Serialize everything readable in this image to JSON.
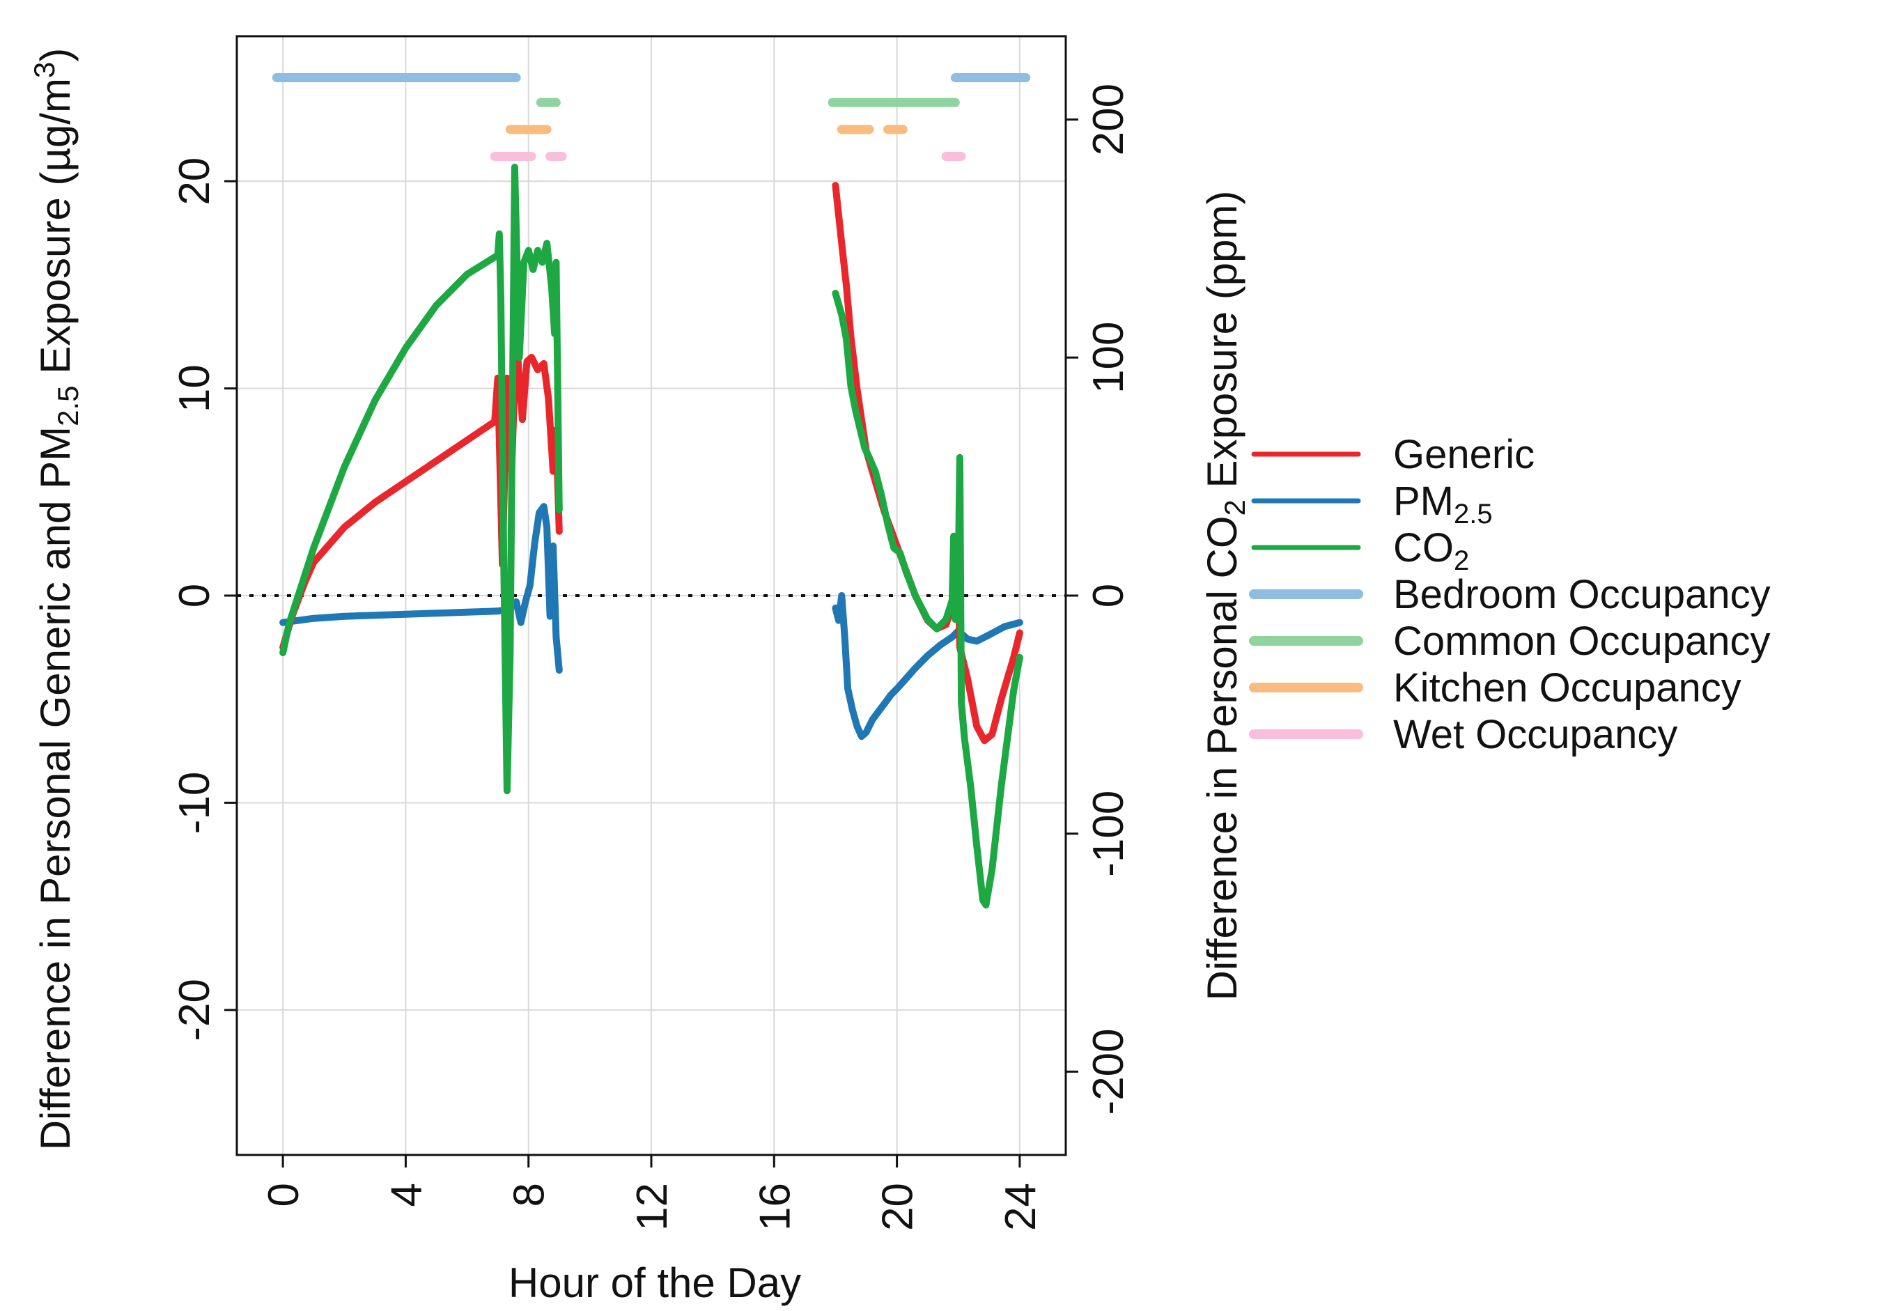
{
  "chart_data": {
    "type": "line",
    "xlabel": "Hour of the Day",
    "ylabel_left": {
      "prefix": "Difference in Personal Generic and PM",
      "sub": "2.5",
      "mid": " Exposure (µg/m",
      "sup": "3",
      "suffix": ")"
    },
    "ylabel_right": {
      "prefix": "Difference in Personal CO",
      "sub": "2",
      "suffix": " Exposure (ppm)"
    },
    "xlim": [
      -1.5,
      25.5
    ],
    "ylim_left": [
      -27,
      27
    ],
    "ylim_right": [
      -235,
      235
    ],
    "x_ticks": [
      0,
      4,
      8,
      12,
      16,
      20,
      24
    ],
    "x_tick_labels": [
      "0",
      "4",
      "8",
      "12",
      "16",
      "20",
      "24"
    ],
    "left_ticks": [
      -20,
      -10,
      0,
      10,
      20
    ],
    "left_tick_labels": [
      "-20",
      "-10",
      "0",
      "10",
      "20"
    ],
    "right_ticks": [
      -200,
      -100,
      0,
      100,
      200
    ],
    "right_tick_labels": [
      "-200",
      "-100",
      "0",
      "100",
      "200"
    ],
    "grid": true,
    "reference_line": {
      "y": 0,
      "style": "dotted"
    },
    "legend": {
      "placement": "right",
      "entries": [
        {
          "key": "generic",
          "label": "Generic",
          "color": "#e8262b"
        },
        {
          "key": "pm25",
          "label": "PM",
          "sub": "2.5",
          "color": "#1f77b4"
        },
        {
          "key": "co2",
          "label": "CO",
          "sub": "2",
          "color": "#1ea843"
        },
        {
          "key": "bedroom",
          "label": "Bedroom Occupancy",
          "color": "#8fbde0"
        },
        {
          "key": "common",
          "label": "Common Occupancy",
          "color": "#8fd39f"
        },
        {
          "key": "kitchen",
          "label": "Kitchen Occupancy",
          "color": "#f9bc7e"
        },
        {
          "key": "wet",
          "label": "Wet Occupancy",
          "color": "#f9bedc"
        }
      ]
    },
    "series": [
      {
        "name": "Generic",
        "axis": "left",
        "color": "#e8262b",
        "segments": [
          [
            [
              0,
              -2.5
            ],
            [
              0.3,
              -1
            ],
            [
              0.7,
              0.6
            ],
            [
              1,
              1.6
            ],
            [
              2,
              3.3
            ],
            [
              3,
              4.5
            ],
            [
              4,
              5.5
            ],
            [
              5,
              6.5
            ],
            [
              6,
              7.5
            ],
            [
              6.9,
              8.4
            ],
            [
              7.0,
              10.5
            ],
            [
              7.15,
              1.5
            ],
            [
              7.3,
              10.5
            ],
            [
              7.45,
              6
            ],
            [
              7.6,
              12.5
            ],
            [
              7.8,
              8.5
            ],
            [
              7.95,
              11.3
            ],
            [
              8.1,
              11.5
            ],
            [
              8.3,
              10.9
            ],
            [
              8.5,
              11.2
            ],
            [
              8.65,
              9.5
            ],
            [
              8.8,
              6
            ],
            [
              8.9,
              8
            ],
            [
              9.0,
              3.1
            ]
          ],
          [
            [
              18.0,
              19.8
            ],
            [
              18.2,
              17
            ],
            [
              18.35,
              15
            ],
            [
              18.5,
              12.5
            ],
            [
              18.7,
              10
            ],
            [
              18.85,
              8.5
            ],
            [
              19.0,
              7
            ],
            [
              19.2,
              6
            ],
            [
              19.4,
              5
            ],
            [
              19.6,
              4
            ],
            [
              19.8,
              3.2
            ],
            [
              20.0,
              2.4
            ],
            [
              20.3,
              1.2
            ],
            [
              20.6,
              0
            ],
            [
              21,
              -1.2
            ],
            [
              21.3,
              -1.6
            ],
            [
              21.6,
              -1.4
            ],
            [
              21.8,
              -0.5
            ],
            [
              22.0,
              1.2
            ],
            [
              22.05,
              -2.5
            ],
            [
              22.3,
              -4
            ],
            [
              22.6,
              -6.3
            ],
            [
              22.85,
              -7
            ],
            [
              23.1,
              -6.7
            ],
            [
              23.4,
              -5
            ],
            [
              23.8,
              -3
            ],
            [
              24.0,
              -1.8
            ]
          ]
        ]
      },
      {
        "name": "PM2.5",
        "axis": "left",
        "color": "#1f77b4",
        "segments": [
          [
            [
              0,
              -1.3
            ],
            [
              1,
              -1.1
            ],
            [
              2,
              -1.0
            ],
            [
              3,
              -0.95
            ],
            [
              4,
              -0.9
            ],
            [
              5,
              -0.85
            ],
            [
              6,
              -0.8
            ],
            [
              7,
              -0.75
            ],
            [
              7.2,
              -0.7
            ],
            [
              7.4,
              -0.6
            ],
            [
              7.6,
              -0.3
            ],
            [
              7.75,
              -1.3
            ],
            [
              7.9,
              -0.3
            ],
            [
              8.05,
              0.5
            ],
            [
              8.2,
              2.5
            ],
            [
              8.35,
              4
            ],
            [
              8.5,
              4.3
            ],
            [
              8.6,
              3.3
            ],
            [
              8.7,
              -1
            ],
            [
              8.8,
              2.4
            ],
            [
              8.9,
              -2
            ],
            [
              9.0,
              -3.6
            ]
          ],
          [
            [
              18.0,
              -0.6
            ],
            [
              18.1,
              -1.2
            ],
            [
              18.2,
              0
            ],
            [
              18.3,
              -2
            ],
            [
              18.4,
              -4.5
            ],
            [
              18.55,
              -5.5
            ],
            [
              18.7,
              -6.3
            ],
            [
              18.85,
              -6.8
            ],
            [
              19.0,
              -6.6
            ],
            [
              19.2,
              -6
            ],
            [
              19.4,
              -5.6
            ],
            [
              19.6,
              -5.2
            ],
            [
              19.8,
              -4.8
            ],
            [
              20.0,
              -4.5
            ],
            [
              20.3,
              -4
            ],
            [
              20.6,
              -3.5
            ],
            [
              21.0,
              -2.9
            ],
            [
              21.4,
              -2.4
            ],
            [
              21.8,
              -2
            ],
            [
              22.0,
              -1.7
            ],
            [
              22.3,
              -2.1
            ],
            [
              22.6,
              -2.2
            ],
            [
              23,
              -1.9
            ],
            [
              23.5,
              -1.5
            ],
            [
              24.0,
              -1.3
            ]
          ]
        ]
      },
      {
        "name": "CO2",
        "axis": "right",
        "color": "#1ea843",
        "segments": [
          [
            [
              0,
              -24
            ],
            [
              0.2,
              -12
            ],
            [
              0.5,
              0
            ],
            [
              1,
              20
            ],
            [
              2,
              54
            ],
            [
              3,
              82
            ],
            [
              4,
              104
            ],
            [
              5,
              122
            ],
            [
              6,
              135
            ],
            [
              7,
              143
            ],
            [
              7.05,
              152
            ],
            [
              7.1,
              125
            ],
            [
              7.2,
              10
            ],
            [
              7.3,
              -82
            ],
            [
              7.4,
              -25
            ],
            [
              7.55,
              180
            ],
            [
              7.7,
              100
            ],
            [
              7.85,
              140
            ],
            [
              8.0,
              145
            ],
            [
              8.15,
              137
            ],
            [
              8.3,
              145
            ],
            [
              8.45,
              140
            ],
            [
              8.6,
              148
            ],
            [
              8.75,
              130
            ],
            [
              8.85,
              110
            ],
            [
              8.9,
              140
            ],
            [
              9.0,
              36
            ]
          ],
          [
            [
              18.0,
              127
            ],
            [
              18.2,
              118
            ],
            [
              18.35,
              108
            ],
            [
              18.5,
              88
            ],
            [
              18.65,
              78
            ],
            [
              18.8,
              70
            ],
            [
              18.95,
              62
            ],
            [
              19.1,
              58
            ],
            [
              19.3,
              52
            ],
            [
              19.5,
              42
            ],
            [
              19.7,
              30
            ],
            [
              19.9,
              20
            ],
            [
              20.1,
              18
            ],
            [
              20.3,
              10
            ],
            [
              20.6,
              0
            ],
            [
              21,
              -10
            ],
            [
              21.3,
              -14
            ],
            [
              21.6,
              -10
            ],
            [
              21.8,
              -2
            ],
            [
              21.85,
              25
            ],
            [
              21.9,
              -10
            ],
            [
              22.0,
              10
            ],
            [
              22.05,
              58
            ],
            [
              22.1,
              -45
            ],
            [
              22.2,
              -60
            ],
            [
              22.4,
              -80
            ],
            [
              22.6,
              -105
            ],
            [
              22.8,
              -128
            ],
            [
              22.9,
              -130
            ],
            [
              23.1,
              -115
            ],
            [
              23.4,
              -80
            ],
            [
              23.8,
              -40
            ],
            [
              24.0,
              -26
            ]
          ]
        ]
      }
    ],
    "occupancy_bands": [
      {
        "name": "Bedroom Occupancy",
        "color": "#8fbde0",
        "level": 25.0,
        "spans": [
          [
            -0.2,
            7.6
          ],
          [
            21.9,
            24.2
          ]
        ]
      },
      {
        "name": "Common Occupancy",
        "color": "#8fd39f",
        "level": 23.8,
        "spans": [
          [
            8.4,
            8.9
          ],
          [
            17.9,
            19.9
          ],
          [
            19.9,
            21.9
          ]
        ]
      },
      {
        "name": "Kitchen Occupancy",
        "color": "#f9bc7e",
        "level": 22.5,
        "spans": [
          [
            7.4,
            8.6
          ],
          [
            18.2,
            19.1
          ],
          [
            19.7,
            20.2
          ]
        ]
      },
      {
        "name": "Wet Occupancy",
        "color": "#f9bedc",
        "level": 21.2,
        "spans": [
          [
            6.9,
            8.1
          ],
          [
            8.7,
            9.1
          ],
          [
            21.6,
            22.1
          ]
        ]
      }
    ]
  }
}
